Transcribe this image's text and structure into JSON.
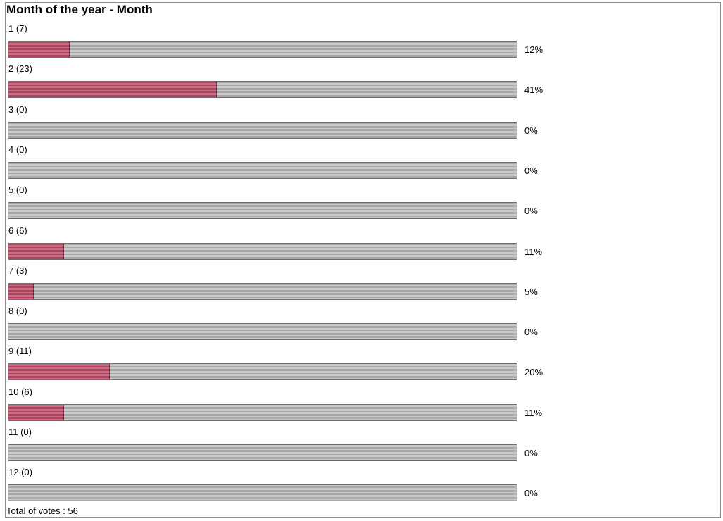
{
  "chart_data": {
    "type": "bar",
    "title": "Month of the year - Month",
    "categories": [
      "1",
      "2",
      "3",
      "4",
      "5",
      "6",
      "7",
      "8",
      "9",
      "10",
      "11",
      "12"
    ],
    "series": [
      {
        "values": [
          7,
          23,
          0,
          0,
          0,
          6,
          3,
          0,
          11,
          6,
          0,
          0
        ]
      }
    ],
    "row_labels": [
      "1 (7)",
      "2 (23)",
      "3 (0)",
      "4 (0)",
      "5 (0)",
      "6 (6)",
      "7 (3)",
      "8 (0)",
      "9 (11)",
      "10 (6)",
      "11 (0)",
      "12 (0)"
    ],
    "percentages": [
      12,
      41,
      0,
      0,
      0,
      11,
      5,
      0,
      20,
      11,
      0,
      0
    ],
    "percentage_labels": [
      "12%",
      "41%",
      "0%",
      "0%",
      "0%",
      "11%",
      "5%",
      "0%",
      "20%",
      "11%",
      "0%",
      "0%"
    ],
    "total_label": "Total of votes : 56",
    "total_votes": 56,
    "colors": {
      "filled": "#b5536c",
      "track": "#b8b8b8"
    }
  }
}
